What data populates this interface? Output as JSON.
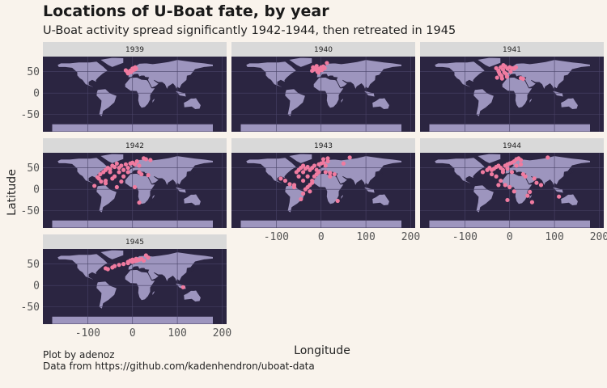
{
  "title": "Locations of U-Boat fate, by year",
  "subtitle": "U-Boat activity spread significantly 1942-1944, then retreated in 1945",
  "x_label": "Longitude",
  "y_label": "Latitude",
  "caption": [
    "Plot by adenoz",
    "Data from https://github.com/kadenhendron/uboat-data"
  ],
  "axes": {
    "xlim": [
      -200,
      210
    ],
    "ylim": [
      -90,
      85
    ],
    "xticks": [
      -100,
      0,
      100,
      200
    ],
    "yticks": [
      50,
      0,
      -50
    ],
    "grid": true
  },
  "chart_data": [
    {
      "type": "scatter",
      "title": "1939",
      "color": "#f07ba0",
      "x": [
        -12,
        -8,
        -5,
        0,
        3,
        5,
        -15,
        -10,
        2,
        6,
        -3,
        8
      ],
      "y": [
        50,
        48,
        52,
        57,
        58,
        55,
        53,
        46,
        54,
        60,
        49,
        57
      ]
    },
    {
      "type": "scatter",
      "title": "1940",
      "color": "#f07ba0",
      "x": [
        -20,
        -15,
        -12,
        -8,
        -5,
        0,
        3,
        5,
        -18,
        -10,
        -3,
        8,
        13,
        -6,
        2
      ],
      "y": [
        52,
        55,
        58,
        50,
        56,
        60,
        57,
        62,
        60,
        63,
        53,
        58,
        70,
        48,
        54
      ]
    },
    {
      "type": "scatter",
      "title": "1941",
      "color": "#f07ba0",
      "x": [
        -30,
        -25,
        -20,
        -15,
        -12,
        -10,
        -8,
        -5,
        0,
        5,
        -22,
        -18,
        -28,
        30,
        25,
        -14,
        -6,
        10,
        2,
        -17,
        -24,
        14
      ],
      "y": [
        58,
        52,
        60,
        55,
        48,
        62,
        45,
        57,
        60,
        58,
        44,
        40,
        36,
        33,
        35,
        65,
        38,
        57,
        50,
        34,
        49,
        60
      ]
    },
    {
      "type": "scatter",
      "title": "1942",
      "color": "#f07ba0",
      "x": [
        -85,
        -75,
        -72,
        -65,
        -60,
        -55,
        -50,
        -45,
        -40,
        -35,
        -30,
        -25,
        -20,
        -15,
        -10,
        -5,
        0,
        5,
        10,
        15,
        20,
        30,
        40,
        -70,
        -60,
        -50,
        -40,
        -30,
        -20,
        -78,
        -60,
        -45,
        -25,
        -10,
        15,
        25,
        35,
        15,
        -35,
        5
      ],
      "y": [
        8,
        25,
        35,
        40,
        45,
        50,
        47,
        55,
        52,
        60,
        50,
        55,
        45,
        58,
        50,
        60,
        62,
        58,
        65,
        55,
        35,
        70,
        68,
        18,
        20,
        40,
        30,
        40,
        30,
        28,
        14,
        25,
        18,
        40,
        40,
        72,
        33,
        -31,
        5,
        5
      ]
    },
    {
      "type": "scatter",
      "title": "1943",
      "color": "#f07ba0",
      "x": [
        -90,
        -80,
        -70,
        -60,
        -55,
        -50,
        -45,
        -40,
        -35,
        -30,
        -25,
        -20,
        -15,
        -10,
        -5,
        0,
        5,
        10,
        15,
        20,
        30,
        37,
        64,
        -45,
        -40,
        -35,
        -30,
        -25,
        -20,
        -15,
        -10,
        -5,
        -40,
        -30,
        -20,
        -50,
        -40,
        10,
        20,
        50,
        -60,
        -25,
        5,
        15
      ],
      "y": [
        25,
        20,
        12,
        10,
        40,
        45,
        50,
        55,
        48,
        52,
        45,
        50,
        55,
        45,
        58,
        60,
        62,
        55,
        65,
        30,
        35,
        -27,
        74,
        -23,
        -10,
        0,
        5,
        10,
        20,
        30,
        35,
        40,
        40,
        30,
        15,
        30,
        20,
        40,
        38,
        60,
        5,
        -5,
        70,
        72
      ]
    },
    {
      "type": "scatter",
      "title": "1944",
      "color": "#f07ba0",
      "x": [
        -60,
        -50,
        -45,
        -40,
        -35,
        -30,
        -25,
        -20,
        -15,
        -10,
        -5,
        0,
        5,
        10,
        15,
        20,
        25,
        30,
        35,
        45,
        85,
        110,
        -5,
        -30,
        -20,
        -10,
        0,
        10,
        5,
        -40,
        -15,
        60,
        70,
        40,
        50,
        15,
        25,
        -25,
        -5,
        55
      ],
      "y": [
        40,
        45,
        50,
        45,
        48,
        52,
        55,
        50,
        45,
        55,
        58,
        60,
        62,
        65,
        70,
        72,
        68,
        35,
        30,
        -6,
        74,
        -17,
        -25,
        30,
        20,
        10,
        5,
        -5,
        40,
        35,
        40,
        15,
        10,
        -15,
        -30,
        55,
        58,
        10,
        48,
        25
      ]
    },
    {
      "type": "scatter",
      "title": "1945",
      "color": "#f07ba0",
      "x": [
        -60,
        -55,
        -45,
        -40,
        -30,
        -20,
        -10,
        -5,
        0,
        5,
        10,
        15,
        20,
        25,
        30,
        35,
        113,
        -10,
        0,
        8
      ],
      "y": [
        40,
        38,
        42,
        45,
        48,
        50,
        55,
        58,
        60,
        57,
        58,
        60,
        62,
        58,
        70,
        65,
        -4,
        52,
        55,
        62
      ]
    }
  ]
}
